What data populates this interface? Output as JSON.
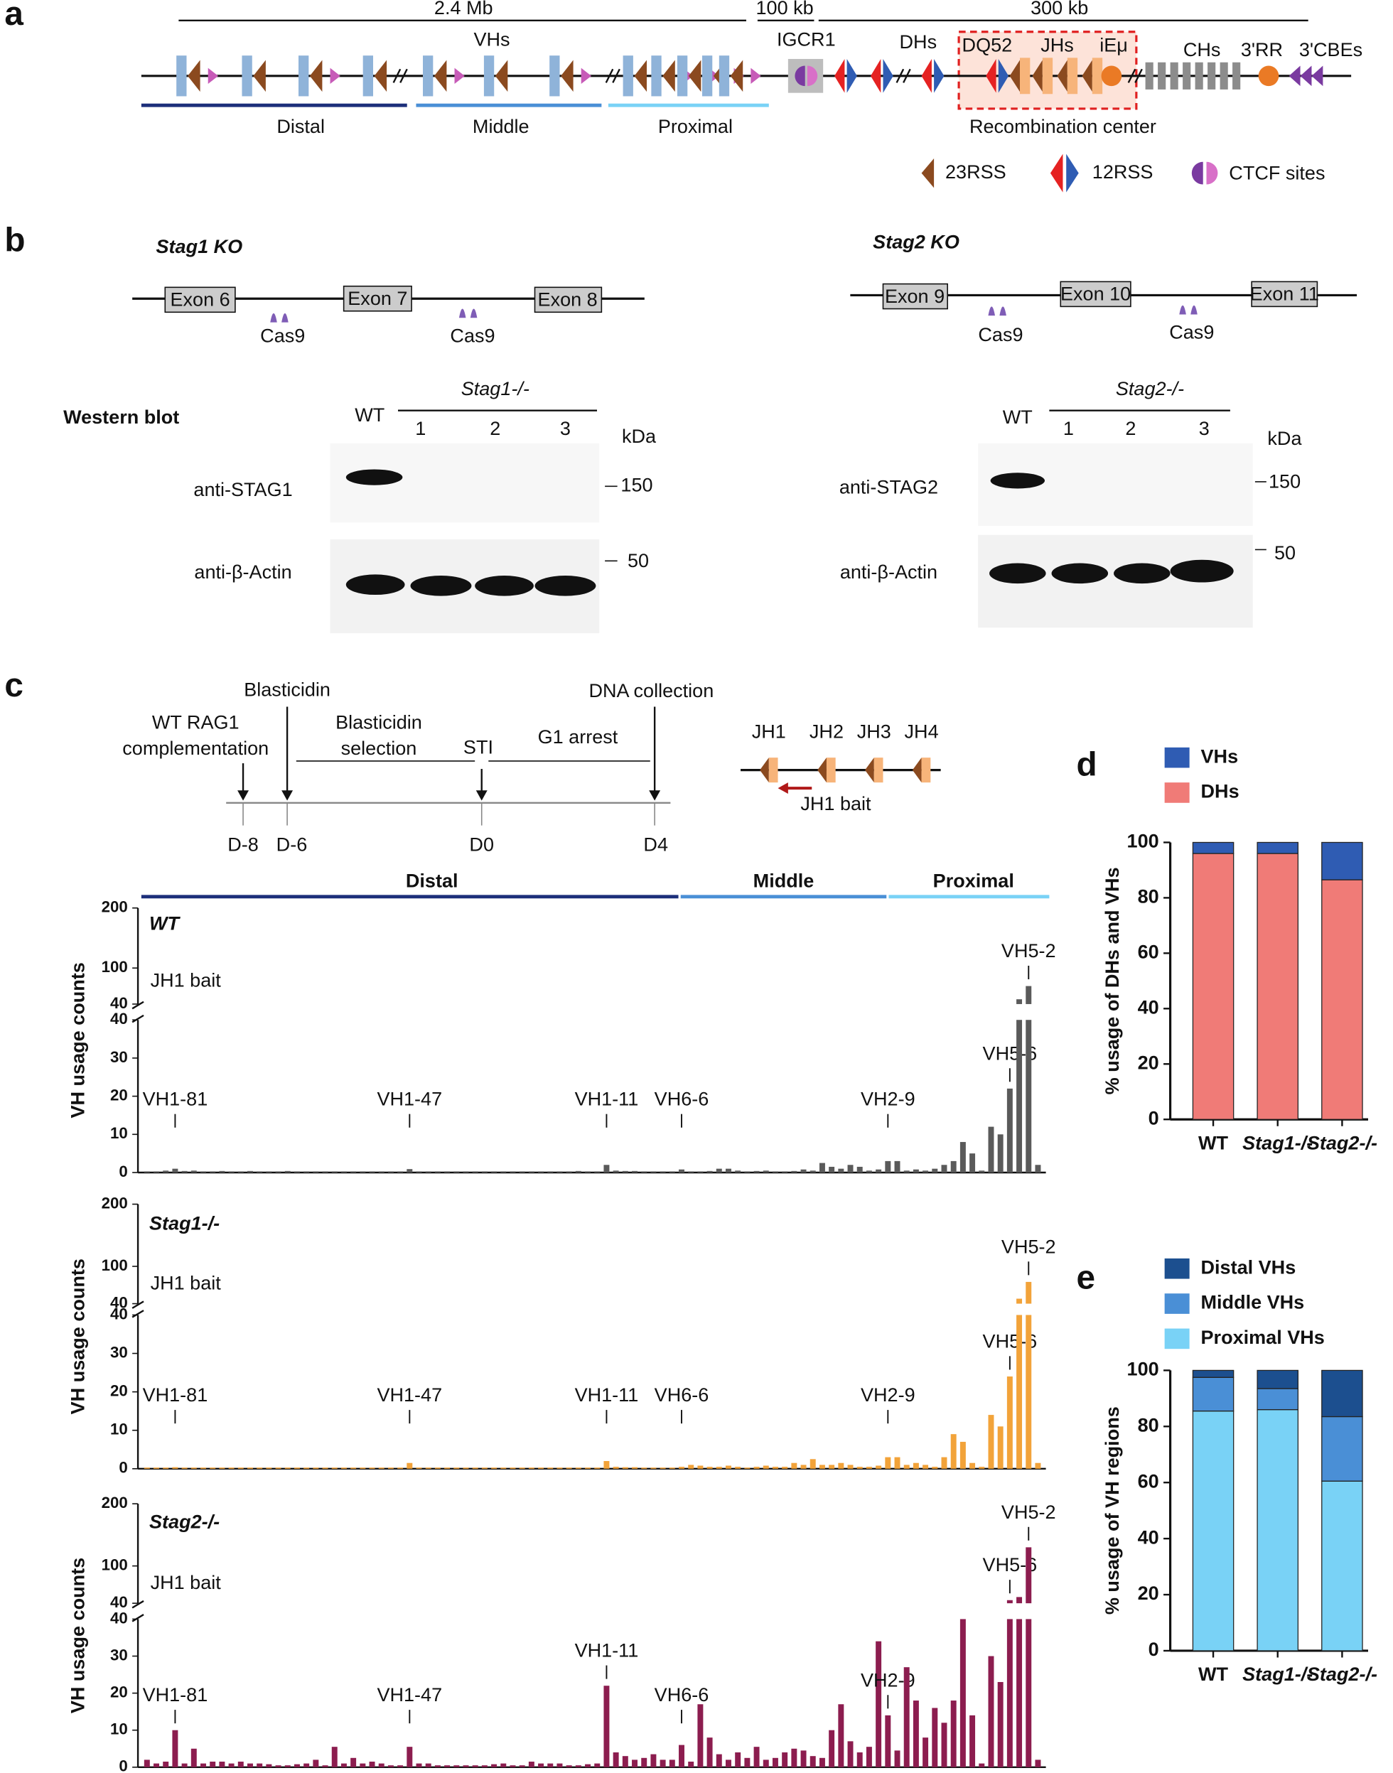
{
  "panel_labels": [
    "a",
    "b",
    "c",
    "d",
    "e"
  ],
  "panel_a": {
    "scales": [
      "2.4 Mb",
      "100 kb",
      "300 kb"
    ],
    "gene_labels": [
      "VHs",
      "IGCR1",
      "DHs",
      "DQ52",
      "JHs",
      "iEμ",
      "CHs",
      "3'RR",
      "3'CBEs"
    ],
    "regions": [
      "Distal",
      "Middle",
      "Proximal"
    ],
    "recombination_center": "Recombination center",
    "legend": [
      "23RSS",
      "12RSS",
      "CTCF sites"
    ]
  },
  "panel_b": {
    "knockouts": [
      {
        "title": "Stag1 KO",
        "exons": [
          "Exon 6",
          "Exon 7",
          "Exon 8"
        ],
        "cas9": [
          "Cas9",
          "Cas9"
        ]
      },
      {
        "title": "Stag2 KO",
        "exons": [
          "Exon 9",
          "Exon 10",
          "Exon 11"
        ],
        "cas9": [
          "Cas9",
          "Cas9"
        ]
      }
    ],
    "western_blot": "Western blot",
    "blots": [
      {
        "lanes": [
          "WT",
          "1",
          "2",
          "3"
        ],
        "genotype": "Stag1-/-",
        "unit": "kDa",
        "rows": [
          {
            "antibody": "anti-STAG1",
            "marker": "150"
          },
          {
            "antibody": "anti-β-Actin",
            "marker": "50"
          }
        ]
      },
      {
        "lanes": [
          "WT",
          "1",
          "2",
          "3"
        ],
        "genotype": "Stag2-/-",
        "unit": "kDa",
        "rows": [
          {
            "antibody": "anti-STAG2",
            "marker": "150"
          },
          {
            "antibody": "anti-β-Actin",
            "marker": "50"
          }
        ]
      }
    ]
  },
  "panel_c_schematic": {
    "timeline": {
      "events": [
        [
          "WT RAG1",
          "complementation"
        ],
        [
          "Blasticidin"
        ],
        [
          "Blasticidin",
          "selection"
        ],
        [
          "STI"
        ],
        [
          "G1 arrest"
        ],
        [
          "DNA collection"
        ]
      ],
      "days": [
        "D-8",
        "D-6",
        "D0",
        "D4"
      ]
    },
    "jh_segments": [
      "JH1",
      "JH2",
      "JH3",
      "JH4"
    ],
    "bait": "JH1 bait",
    "regions": [
      "Distal",
      "Middle",
      "Proximal"
    ]
  },
  "chart_data": [
    {
      "type": "broken_bar",
      "title": "WT",
      "annotation": "JH1 bait",
      "y_label": "VH usage counts",
      "color": "#5a5a5a",
      "ylim": [
        0,
        200
      ],
      "y_break": 40,
      "yticks_lower": [
        0,
        10,
        20,
        30,
        40
      ],
      "yticks_upper": [
        40,
        100,
        200
      ],
      "categories": [
        null,
        null,
        null,
        "VH1-81",
        null,
        null,
        null,
        null,
        null,
        null,
        null,
        null,
        null,
        null,
        null,
        null,
        null,
        null,
        null,
        null,
        null,
        null,
        null,
        null,
        null,
        null,
        null,
        null,
        "VH1-47",
        null,
        null,
        null,
        null,
        null,
        null,
        null,
        null,
        null,
        null,
        null,
        null,
        null,
        null,
        null,
        null,
        null,
        null,
        null,
        null,
        "VH1-11",
        null,
        null,
        null,
        null,
        null,
        null,
        null,
        "VH6-6",
        null,
        null,
        null,
        null,
        null,
        null,
        null,
        null,
        null,
        null,
        null,
        null,
        null,
        null,
        null,
        null,
        null,
        null,
        null,
        null,
        null,
        "VH2-9",
        null,
        null,
        null,
        null,
        null,
        null,
        null,
        null,
        null,
        null,
        null,
        null,
        "VH5-6",
        null,
        "VH5-2",
        null
      ],
      "values": [
        0.3,
        0.3,
        0.5,
        1.0,
        0.4,
        0.5,
        0.3,
        0.3,
        0.4,
        0.3,
        0.3,
        0.4,
        0.3,
        0.3,
        0.3,
        0.4,
        0.3,
        0.3,
        0.3,
        0.3,
        0.3,
        0.3,
        0.3,
        0.3,
        0.3,
        0.3,
        0.3,
        0.3,
        0.9,
        0.3,
        0.3,
        0.3,
        0.3,
        0.3,
        0.3,
        0.3,
        0.3,
        0.3,
        0.3,
        0.3,
        0.3,
        0.3,
        0.3,
        0.3,
        0.3,
        0.3,
        0.4,
        0.3,
        0.3,
        2.0,
        0.5,
        0.4,
        0.4,
        0.3,
        0.3,
        0.3,
        0.3,
        0.8,
        0.3,
        0.3,
        0.4,
        1.0,
        1.0,
        0.5,
        0.3,
        0.4,
        0.5,
        0.3,
        0.3,
        0.4,
        0.8,
        0.5,
        2.5,
        1.5,
        1.0,
        2.0,
        1.5,
        0.5,
        0.8,
        3.0,
        3.0,
        0.5,
        0.8,
        0.5,
        1.0,
        2.0,
        3.0,
        8.0,
        5.0,
        0.5,
        12.0,
        10.0,
        22.0,
        48.0,
        70.0,
        2.0
      ]
    },
    {
      "type": "broken_bar",
      "title": "Stag1-/-",
      "annotation": "JH1 bait",
      "y_label": "VH usage counts",
      "color": "#f2a33a",
      "ylim": [
        0,
        200
      ],
      "y_break": 40,
      "yticks_lower": [
        0,
        10,
        20,
        30,
        40
      ],
      "yticks_upper": [
        40,
        100,
        200
      ],
      "categories": [
        null,
        null,
        null,
        "VH1-81",
        null,
        null,
        null,
        null,
        null,
        null,
        null,
        null,
        null,
        null,
        null,
        null,
        null,
        null,
        null,
        null,
        null,
        null,
        null,
        null,
        null,
        null,
        null,
        null,
        "VH1-47",
        null,
        null,
        null,
        null,
        null,
        null,
        null,
        null,
        null,
        null,
        null,
        null,
        null,
        null,
        null,
        null,
        null,
        null,
        null,
        null,
        "VH1-11",
        null,
        null,
        null,
        null,
        null,
        null,
        null,
        "VH6-6",
        null,
        null,
        null,
        null,
        null,
        null,
        null,
        null,
        null,
        null,
        null,
        null,
        null,
        null,
        null,
        null,
        null,
        null,
        null,
        null,
        null,
        "VH2-9",
        null,
        null,
        null,
        null,
        null,
        null,
        null,
        null,
        null,
        null,
        null,
        null,
        "VH5-6",
        null,
        "VH5-2",
        null
      ],
      "values": [
        0.3,
        0.3,
        0.3,
        0.4,
        0.3,
        0.3,
        0.3,
        0.3,
        0.3,
        0.3,
        0.3,
        0.3,
        0.3,
        0.3,
        0.3,
        0.3,
        0.3,
        0.3,
        0.3,
        0.3,
        0.3,
        0.3,
        0.3,
        0.3,
        0.3,
        0.3,
        0.3,
        0.3,
        1.5,
        0.3,
        0.3,
        0.3,
        0.3,
        0.3,
        0.3,
        0.3,
        0.3,
        0.3,
        0.3,
        0.3,
        0.3,
        0.3,
        0.3,
        0.3,
        0.3,
        0.3,
        0.3,
        0.3,
        0.3,
        2.0,
        0.5,
        0.4,
        0.4,
        0.3,
        0.3,
        0.3,
        0.3,
        0.5,
        1.0,
        0.8,
        0.5,
        0.5,
        0.8,
        0.5,
        0.3,
        0.5,
        0.8,
        0.5,
        0.5,
        1.5,
        1.0,
        2.5,
        1.0,
        1.0,
        1.5,
        1.0,
        0.5,
        0.5,
        0.8,
        3.0,
        3.0,
        1.0,
        1.5,
        1.0,
        0.5,
        3.0,
        9.0,
        7.0,
        1.5,
        0.5,
        14.0,
        11.0,
        24.0,
        48.0,
        75.0,
        1.5
      ]
    },
    {
      "type": "broken_bar",
      "title": "Stag2-/-",
      "annotation": "JH1 bait",
      "y_label": "VH usage counts",
      "color": "#8c1d4f",
      "ylim": [
        0,
        200
      ],
      "y_break": 40,
      "yticks_lower": [
        0,
        10,
        20,
        30,
        40
      ],
      "yticks_upper": [
        40,
        100,
        200
      ],
      "categories": [
        null,
        null,
        null,
        "VH1-81",
        null,
        null,
        null,
        null,
        null,
        null,
        null,
        null,
        null,
        null,
        null,
        null,
        null,
        null,
        null,
        null,
        null,
        null,
        null,
        null,
        null,
        null,
        null,
        null,
        "VH1-47",
        null,
        null,
        null,
        null,
        null,
        null,
        null,
        null,
        null,
        null,
        null,
        null,
        null,
        null,
        null,
        null,
        null,
        null,
        null,
        null,
        "VH1-11",
        null,
        null,
        null,
        null,
        null,
        null,
        null,
        "VH6-6",
        null,
        null,
        null,
        null,
        null,
        null,
        null,
        null,
        null,
        null,
        null,
        null,
        null,
        null,
        null,
        null,
        null,
        null,
        null,
        null,
        null,
        "VH2-9",
        null,
        null,
        null,
        null,
        null,
        null,
        null,
        null,
        null,
        null,
        null,
        null,
        "VH5-6",
        null,
        "VH5-2",
        null
      ],
      "values": [
        2.0,
        1.0,
        1.5,
        10.0,
        1.0,
        5.0,
        1.0,
        1.5,
        1.5,
        1.0,
        1.5,
        1.0,
        1.0,
        0.8,
        0.5,
        0.5,
        0.8,
        1.0,
        2.0,
        0.5,
        5.5,
        1.0,
        2.5,
        1.0,
        1.5,
        1.0,
        0.5,
        0.5,
        5.5,
        1.0,
        1.0,
        0.5,
        0.5,
        0.5,
        0.5,
        0.5,
        0.5,
        0.8,
        1.0,
        0.5,
        0.5,
        1.5,
        1.0,
        1.0,
        1.0,
        0.5,
        0.5,
        0.8,
        1.0,
        22.0,
        4.0,
        3.0,
        2.0,
        2.5,
        3.5,
        2.0,
        2.0,
        6.0,
        1.5,
        17.0,
        8.0,
        3.5,
        2.0,
        4.0,
        2.5,
        5.5,
        2.0,
        2.5,
        4.0,
        5.0,
        4.5,
        3.0,
        2.5,
        10.0,
        17.0,
        7.0,
        4.0,
        5.5,
        34.0,
        14.0,
        4.5,
        27.0,
        18.0,
        8.0,
        16.0,
        12.0,
        18.0,
        40.0,
        14.0,
        1.0,
        30.0,
        23.0,
        45.0,
        50.0,
        130.0,
        2.0
      ]
    },
    {
      "type": "stacked_bar",
      "y_label": "% usage of DHs and VHs",
      "categories": [
        "WT",
        "Stag1-/-",
        "Stag2-/-"
      ],
      "series": [
        {
          "name": "DHs",
          "color": "#f07b77",
          "values": [
            96,
            96,
            86.5
          ]
        },
        {
          "name": "VHs",
          "color": "#2f5cb3",
          "values": [
            4,
            4,
            13.5
          ]
        }
      ],
      "ylim": [
        0,
        100
      ],
      "yticks": [
        0,
        20,
        40,
        60,
        80,
        100
      ]
    },
    {
      "type": "stacked_bar",
      "y_label": "% usage of VH regions",
      "categories": [
        "WT",
        "Stag1-/-",
        "Stag2-/-"
      ],
      "series": [
        {
          "name": "Proximal VHs",
          "color": "#79d2f6",
          "values": [
            85.5,
            86,
            60.5
          ]
        },
        {
          "name": "Middle VHs",
          "color": "#4a8fd6",
          "values": [
            12,
            7.5,
            23
          ]
        },
        {
          "name": "Distal VHs",
          "color": "#1c4f8f",
          "values": [
            2.5,
            6.5,
            16.5
          ]
        }
      ],
      "ylim": [
        0,
        100
      ],
      "yticks": [
        0,
        20,
        40,
        60,
        80,
        100
      ]
    }
  ]
}
